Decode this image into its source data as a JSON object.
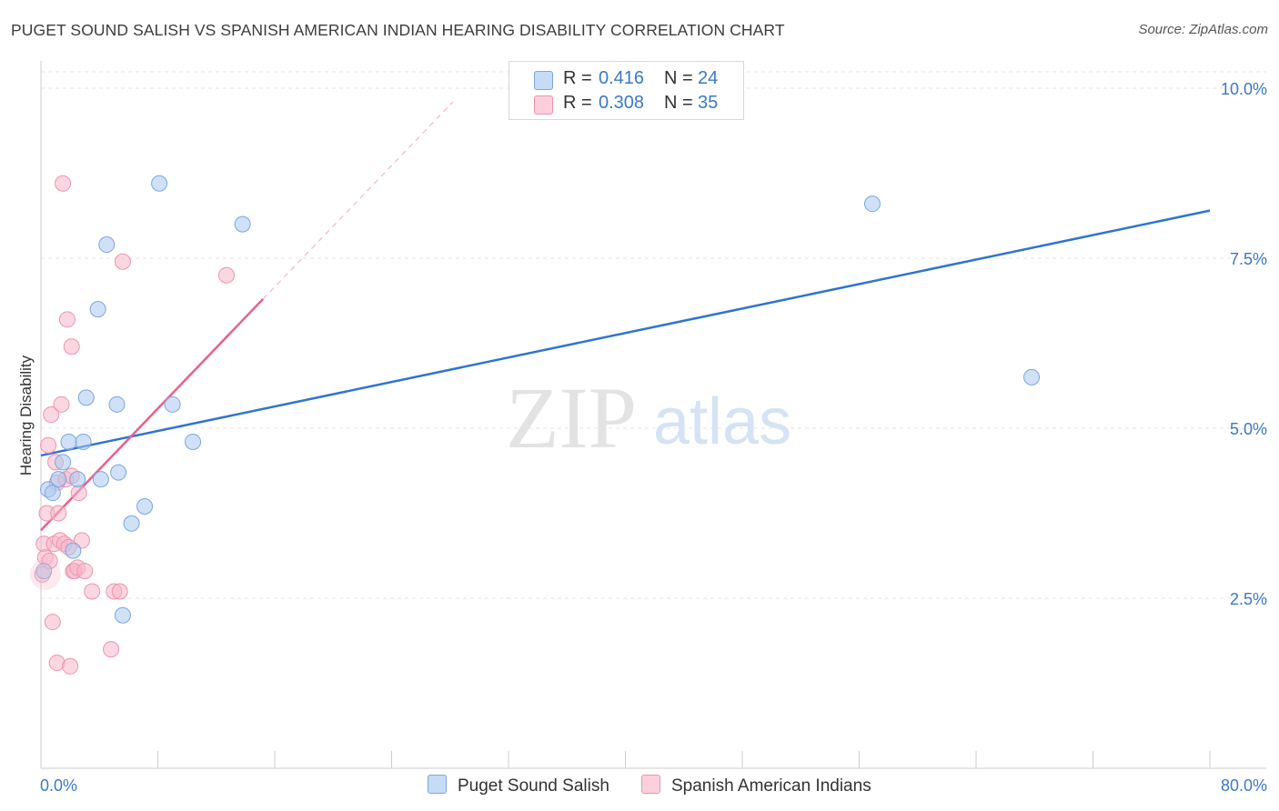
{
  "title": "PUGET SOUND SALISH VS SPANISH AMERICAN INDIAN HEARING DISABILITY CORRELATION CHART",
  "source": "Source: ZipAtlas.com",
  "watermark": {
    "zip": "ZIP",
    "atlas": "atlas"
  },
  "legend": [
    {
      "r_label": "R =",
      "r_value": "0.416",
      "n_label": "N =",
      "n_value": "24",
      "color": "#a9c8f0"
    },
    {
      "r_label": "R =",
      "r_value": "0.308",
      "n_label": "N =",
      "n_value": "35",
      "color": "#f7b7c9"
    }
  ],
  "chart_data": {
    "type": "scatter",
    "title": "PUGET SOUND SALISH VS SPANISH AMERICAN INDIAN HEARING DISABILITY CORRELATION CHART",
    "xlabel": "",
    "ylabel": "Hearing Disability",
    "xlim": [
      0,
      80
    ],
    "ylim": [
      0,
      10.5
    ],
    "x_tick_labels": [
      "0.0%",
      "80.0%"
    ],
    "y_ticks": [
      2.5,
      5.0,
      7.5,
      10.0
    ],
    "y_tick_labels": [
      "2.5%",
      "5.0%",
      "7.5%",
      "10.0%"
    ],
    "grid": true,
    "legend_position": "bottom",
    "series": [
      {
        "name": "Puget Sound Salish",
        "color": "#a9c8f0",
        "stroke": "#7aa7e0",
        "trend_color": "#2f74d0",
        "trend": {
          "x": [
            0,
            80
          ],
          "y": [
            4.6,
            8.2
          ]
        },
        "points": [
          {
            "x": 0.2,
            "y": 2.9
          },
          {
            "x": 0.5,
            "y": 4.1
          },
          {
            "x": 0.8,
            "y": 4.05
          },
          {
            "x": 1.2,
            "y": 4.25
          },
          {
            "x": 1.5,
            "y": 4.5
          },
          {
            "x": 1.9,
            "y": 4.8
          },
          {
            "x": 2.2,
            "y": 3.2
          },
          {
            "x": 2.5,
            "y": 4.25
          },
          {
            "x": 2.9,
            "y": 4.8
          },
          {
            "x": 3.1,
            "y": 5.45
          },
          {
            "x": 3.9,
            "y": 6.75
          },
          {
            "x": 4.1,
            "y": 4.25
          },
          {
            "x": 4.5,
            "y": 7.7
          },
          {
            "x": 5.2,
            "y": 5.35
          },
          {
            "x": 5.3,
            "y": 4.35
          },
          {
            "x": 5.6,
            "y": 2.25
          },
          {
            "x": 6.2,
            "y": 3.6
          },
          {
            "x": 7.1,
            "y": 3.85
          },
          {
            "x": 8.1,
            "y": 8.6
          },
          {
            "x": 9.0,
            "y": 5.35
          },
          {
            "x": 10.4,
            "y": 4.8
          },
          {
            "x": 13.8,
            "y": 8.0
          },
          {
            "x": 56.9,
            "y": 8.3
          },
          {
            "x": 67.8,
            "y": 5.75
          }
        ]
      },
      {
        "name": "Spanish American Indians",
        "color": "#f7b7c9",
        "stroke": "#ee94b0",
        "trend_color": "#e8608a",
        "trend": {
          "x": [
            0,
            15.2
          ],
          "y": [
            3.5,
            6.9
          ]
        },
        "trend_ext": {
          "x": [
            15.2,
            28.2
          ],
          "y": [
            6.9,
            9.8
          ]
        },
        "points": [
          {
            "x": 0.1,
            "y": 2.85
          },
          {
            "x": 0.2,
            "y": 3.3
          },
          {
            "x": 0.3,
            "y": 3.1
          },
          {
            "x": 0.4,
            "y": 3.75
          },
          {
            "x": 0.5,
            "y": 4.75
          },
          {
            "x": 0.6,
            "y": 3.05
          },
          {
            "x": 0.7,
            "y": 5.2
          },
          {
            "x": 0.8,
            "y": 2.15
          },
          {
            "x": 0.9,
            "y": 3.3
          },
          {
            "x": 1.0,
            "y": 4.5
          },
          {
            "x": 1.1,
            "y": 1.55
          },
          {
            "x": 1.1,
            "y": 4.2
          },
          {
            "x": 1.2,
            "y": 3.75
          },
          {
            "x": 1.3,
            "y": 3.35
          },
          {
            "x": 1.4,
            "y": 5.35
          },
          {
            "x": 1.5,
            "y": 8.6
          },
          {
            "x": 1.6,
            "y": 3.3
          },
          {
            "x": 1.7,
            "y": 4.25
          },
          {
            "x": 1.8,
            "y": 6.6
          },
          {
            "x": 1.9,
            "y": 3.25
          },
          {
            "x": 2.0,
            "y": 1.5
          },
          {
            "x": 2.1,
            "y": 4.3
          },
          {
            "x": 2.1,
            "y": 6.2
          },
          {
            "x": 2.2,
            "y": 2.9
          },
          {
            "x": 2.3,
            "y": 2.9
          },
          {
            "x": 2.5,
            "y": 2.95
          },
          {
            "x": 2.6,
            "y": 4.05
          },
          {
            "x": 2.8,
            "y": 3.35
          },
          {
            "x": 3.0,
            "y": 2.9
          },
          {
            "x": 3.5,
            "y": 2.6
          },
          {
            "x": 4.8,
            "y": 1.75
          },
          {
            "x": 5.0,
            "y": 2.6
          },
          {
            "x": 5.4,
            "y": 2.6
          },
          {
            "x": 5.6,
            "y": 7.45
          },
          {
            "x": 12.7,
            "y": 7.25
          }
        ]
      }
    ]
  }
}
